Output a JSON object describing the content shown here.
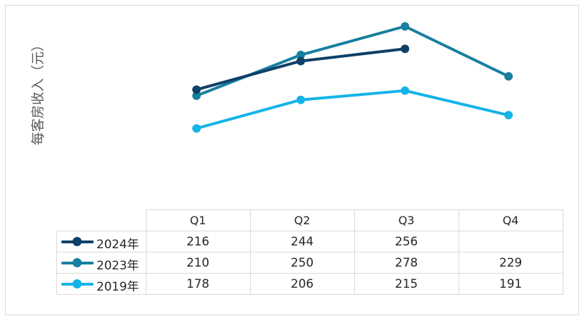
{
  "chart_data": {
    "type": "line",
    "ylabel": "每客房收入（元）",
    "categories": [
      "Q1",
      "Q2",
      "Q3",
      "Q4"
    ],
    "ylim": [
      100,
      290
    ],
    "series": [
      {
        "name": "2024年",
        "color": "#0e4068",
        "values": [
          216,
          244,
          256,
          null
        ]
      },
      {
        "name": "2023年",
        "color": "#177f9f",
        "values": [
          210,
          250,
          278,
          229
        ]
      },
      {
        "name": "2019年",
        "color": "#14b4e8",
        "values": [
          178,
          206,
          215,
          191
        ]
      }
    ]
  }
}
